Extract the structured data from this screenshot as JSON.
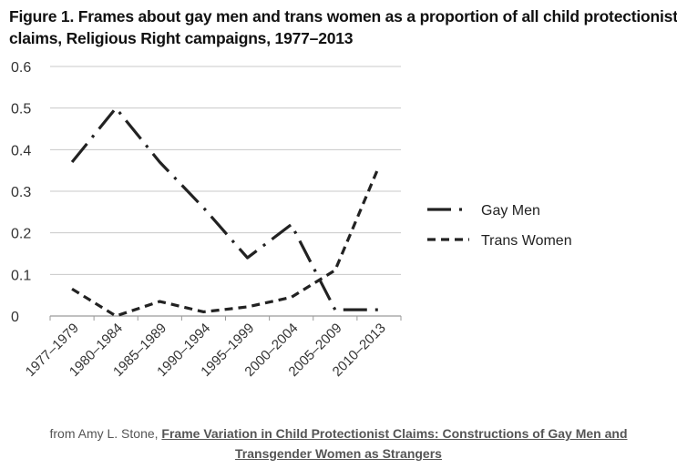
{
  "chart_data": {
    "type": "line",
    "title_line1": "Figure 1.  Frames about gay men and trans women as a proportion of all child protectionist",
    "title_line2": "claims, Religious Right campaigns, 1977–2013",
    "categories": [
      "1977–1979",
      "1980–1984",
      "1985–1989",
      "1990–1994",
      "1995–1999",
      "2000–2004",
      "2005–2009",
      "2010–2013"
    ],
    "series": [
      {
        "name": "Gay Men",
        "values": [
          0.37,
          0.5,
          0.37,
          0.26,
          0.14,
          0.22,
          0.015,
          0.015
        ],
        "style": "long-dash-dot",
        "color": "#222222"
      },
      {
        "name": "Trans Women",
        "values": [
          0.065,
          0.0,
          0.035,
          0.01,
          0.022,
          0.045,
          0.11,
          0.36
        ],
        "style": "short-dash",
        "color": "#222222"
      }
    ],
    "yticks": [
      "0",
      "0.1",
      "0.2",
      "0.3",
      "0.4",
      "0.5",
      "0.6"
    ],
    "ylim": [
      0,
      0.6
    ],
    "grid": true,
    "legend_position": "right"
  },
  "caption": {
    "prefix": "from Amy L. Stone, ",
    "link_line1": "Frame Variation in Child Protectionist Claims: Constructions of Gay Men and",
    "link_line2": "Transgender Women as Strangers"
  }
}
